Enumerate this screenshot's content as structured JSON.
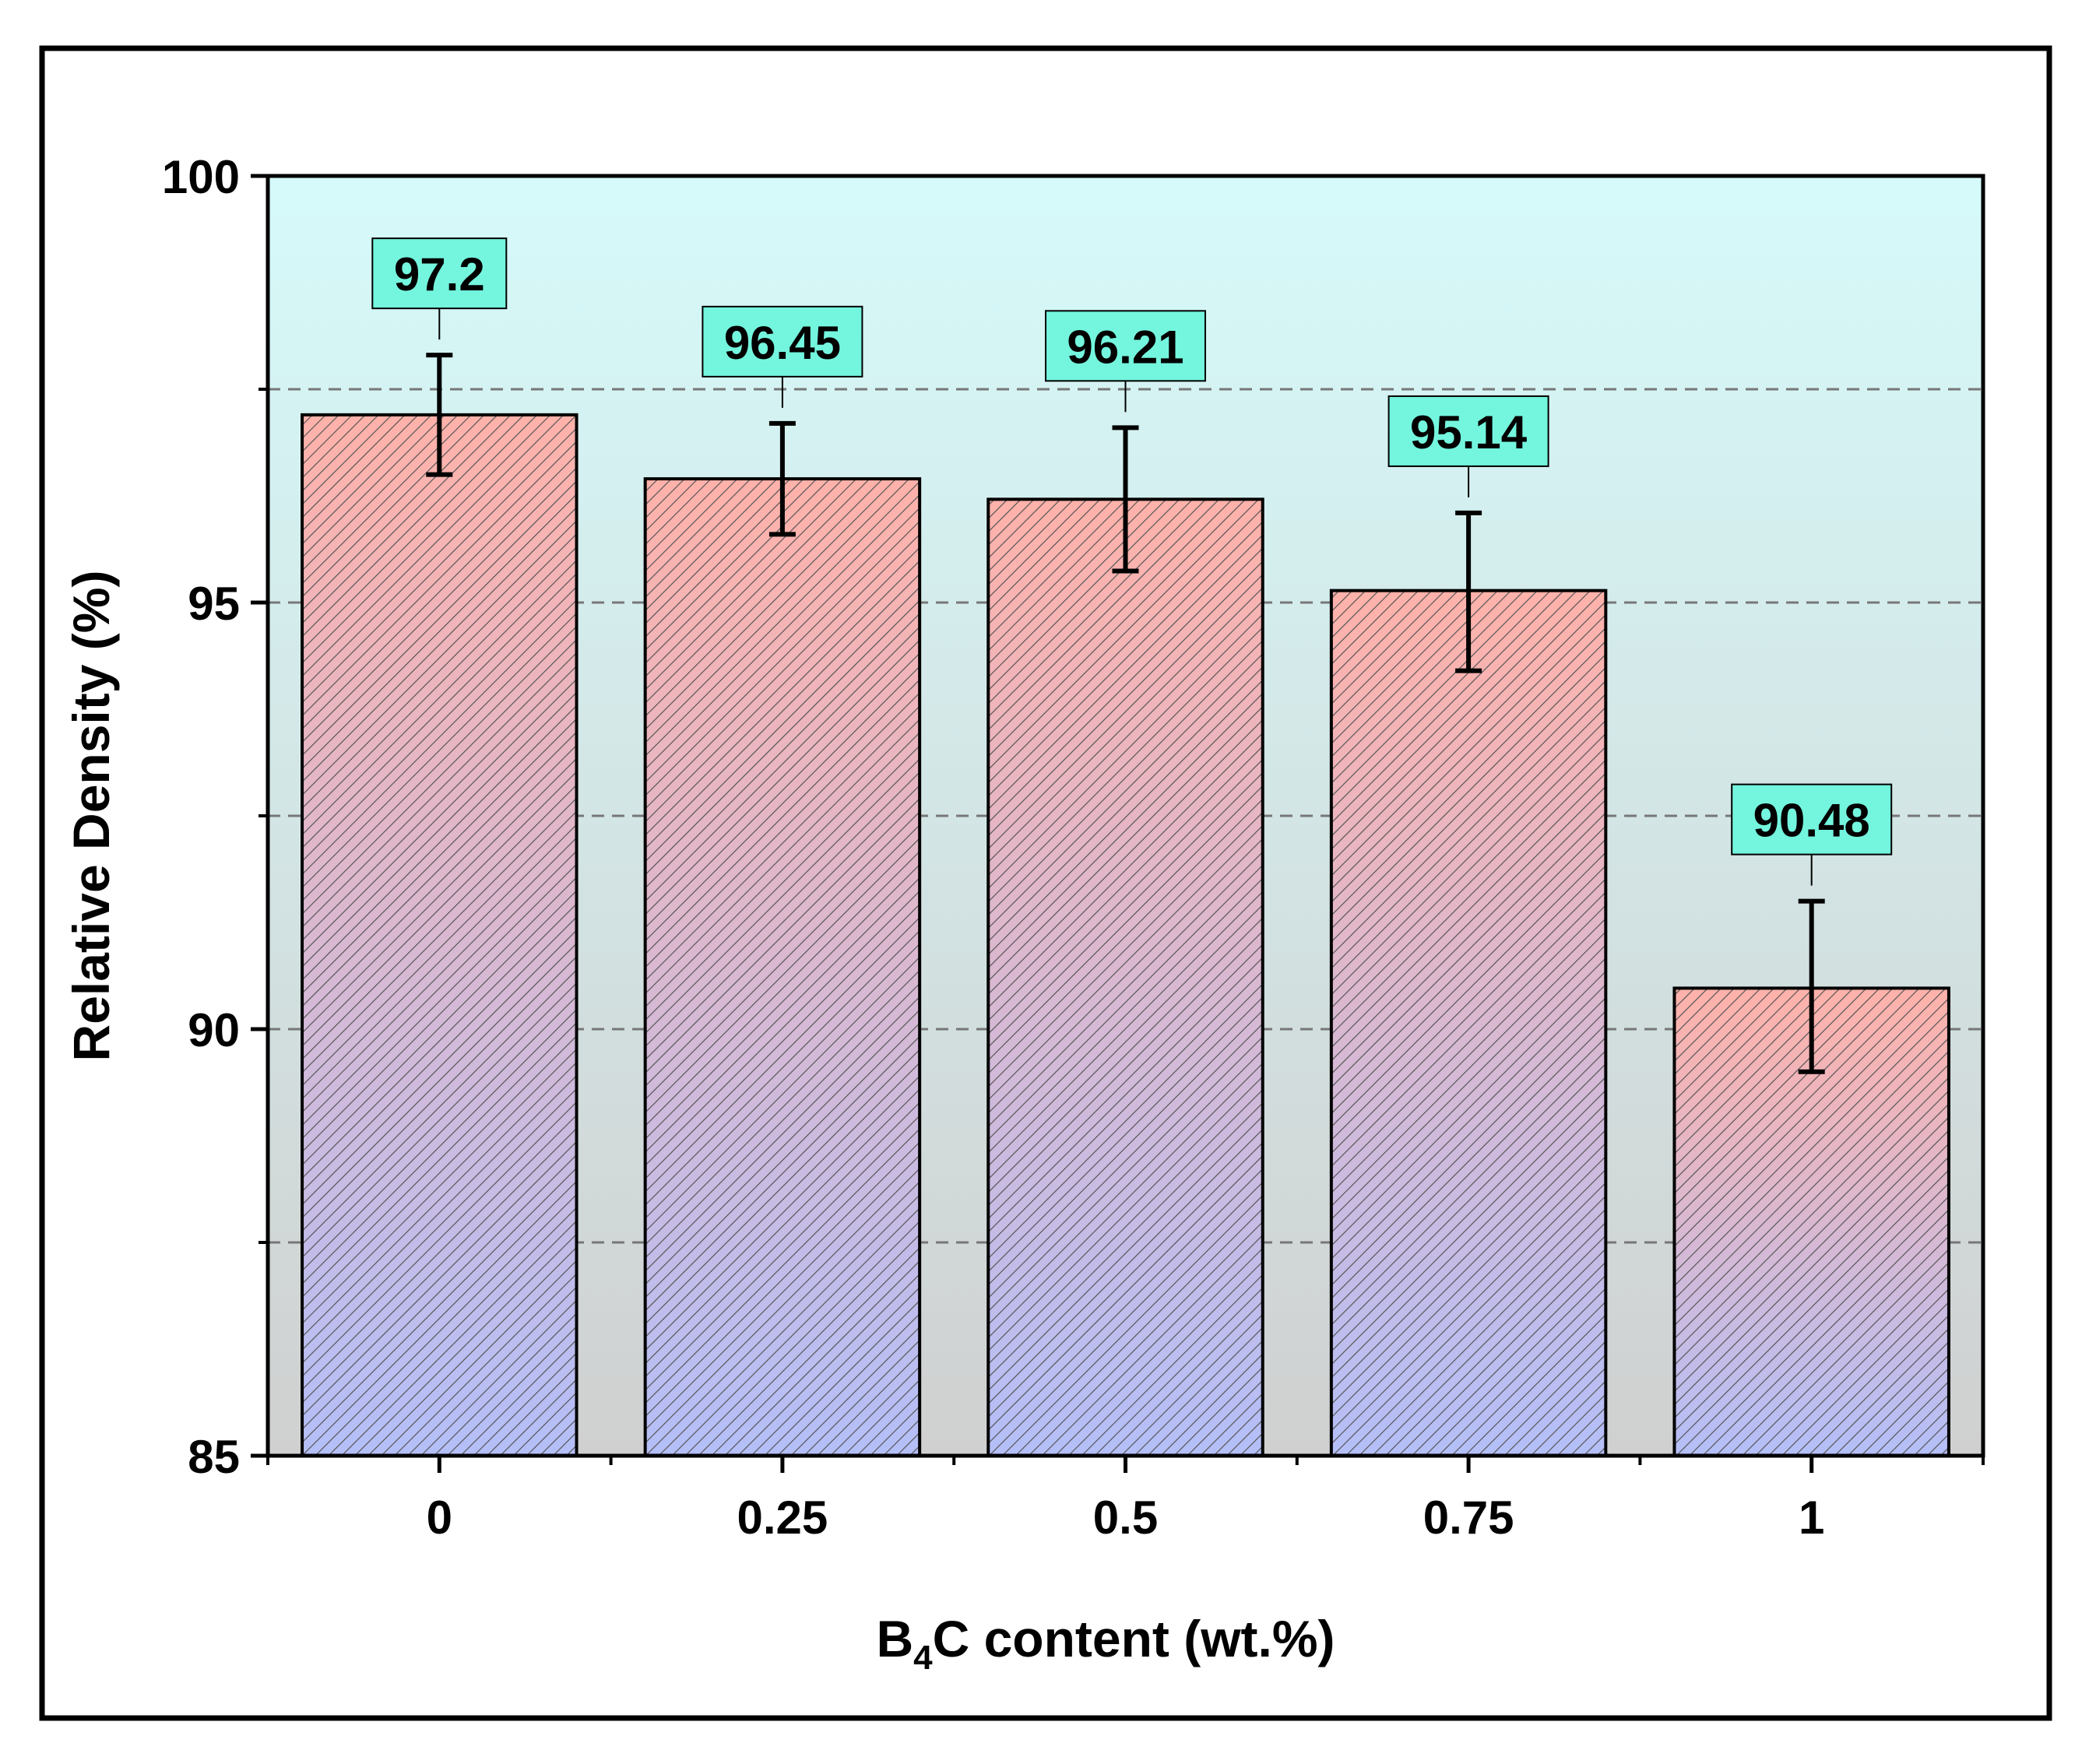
{
  "chart_data": {
    "type": "bar",
    "title": "",
    "xlabel_main": "B",
    "xlabel_sub": "4",
    "xlabel_rest": "C content (wt.%)",
    "ylabel": "Relative Density (%)",
    "categories": [
      "0",
      "0.25",
      "0.5",
      "0.75",
      "1"
    ],
    "values": [
      97.2,
      96.45,
      96.21,
      95.14,
      90.48
    ],
    "value_labels": [
      "97.2",
      "96.45",
      "96.21",
      "95.14",
      "90.48"
    ],
    "error_high": [
      97.9,
      97.1,
      97.05,
      96.05,
      91.5
    ],
    "error_low": [
      96.5,
      95.8,
      95.37,
      94.2,
      89.5
    ],
    "ylim": [
      85,
      100
    ],
    "yticks": [
      "85",
      "90",
      "95",
      "100"
    ],
    "gridlines": [
      87.5,
      90,
      92.5,
      95,
      97.5
    ],
    "grid": "dashed-horizontal",
    "colors": {
      "bar_top": "#ffb2aa",
      "bar_bottom": "#b4bff8",
      "bg_top": "#d6fafa",
      "bg_bottom": "#d0d0d0",
      "label_box": "#74f5de",
      "hatch": "#555555",
      "grid": "#777777"
    }
  }
}
